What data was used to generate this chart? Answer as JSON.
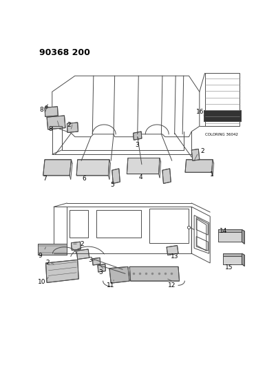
{
  "title": "90368 200",
  "bg_color": "#ffffff",
  "figsize": [
    4.01,
    5.33
  ],
  "dpi": 100,
  "lc": "#4a4a4a",
  "lw": 0.7,
  "fs": 6.5,
  "small_text": "COLORING 36042"
}
